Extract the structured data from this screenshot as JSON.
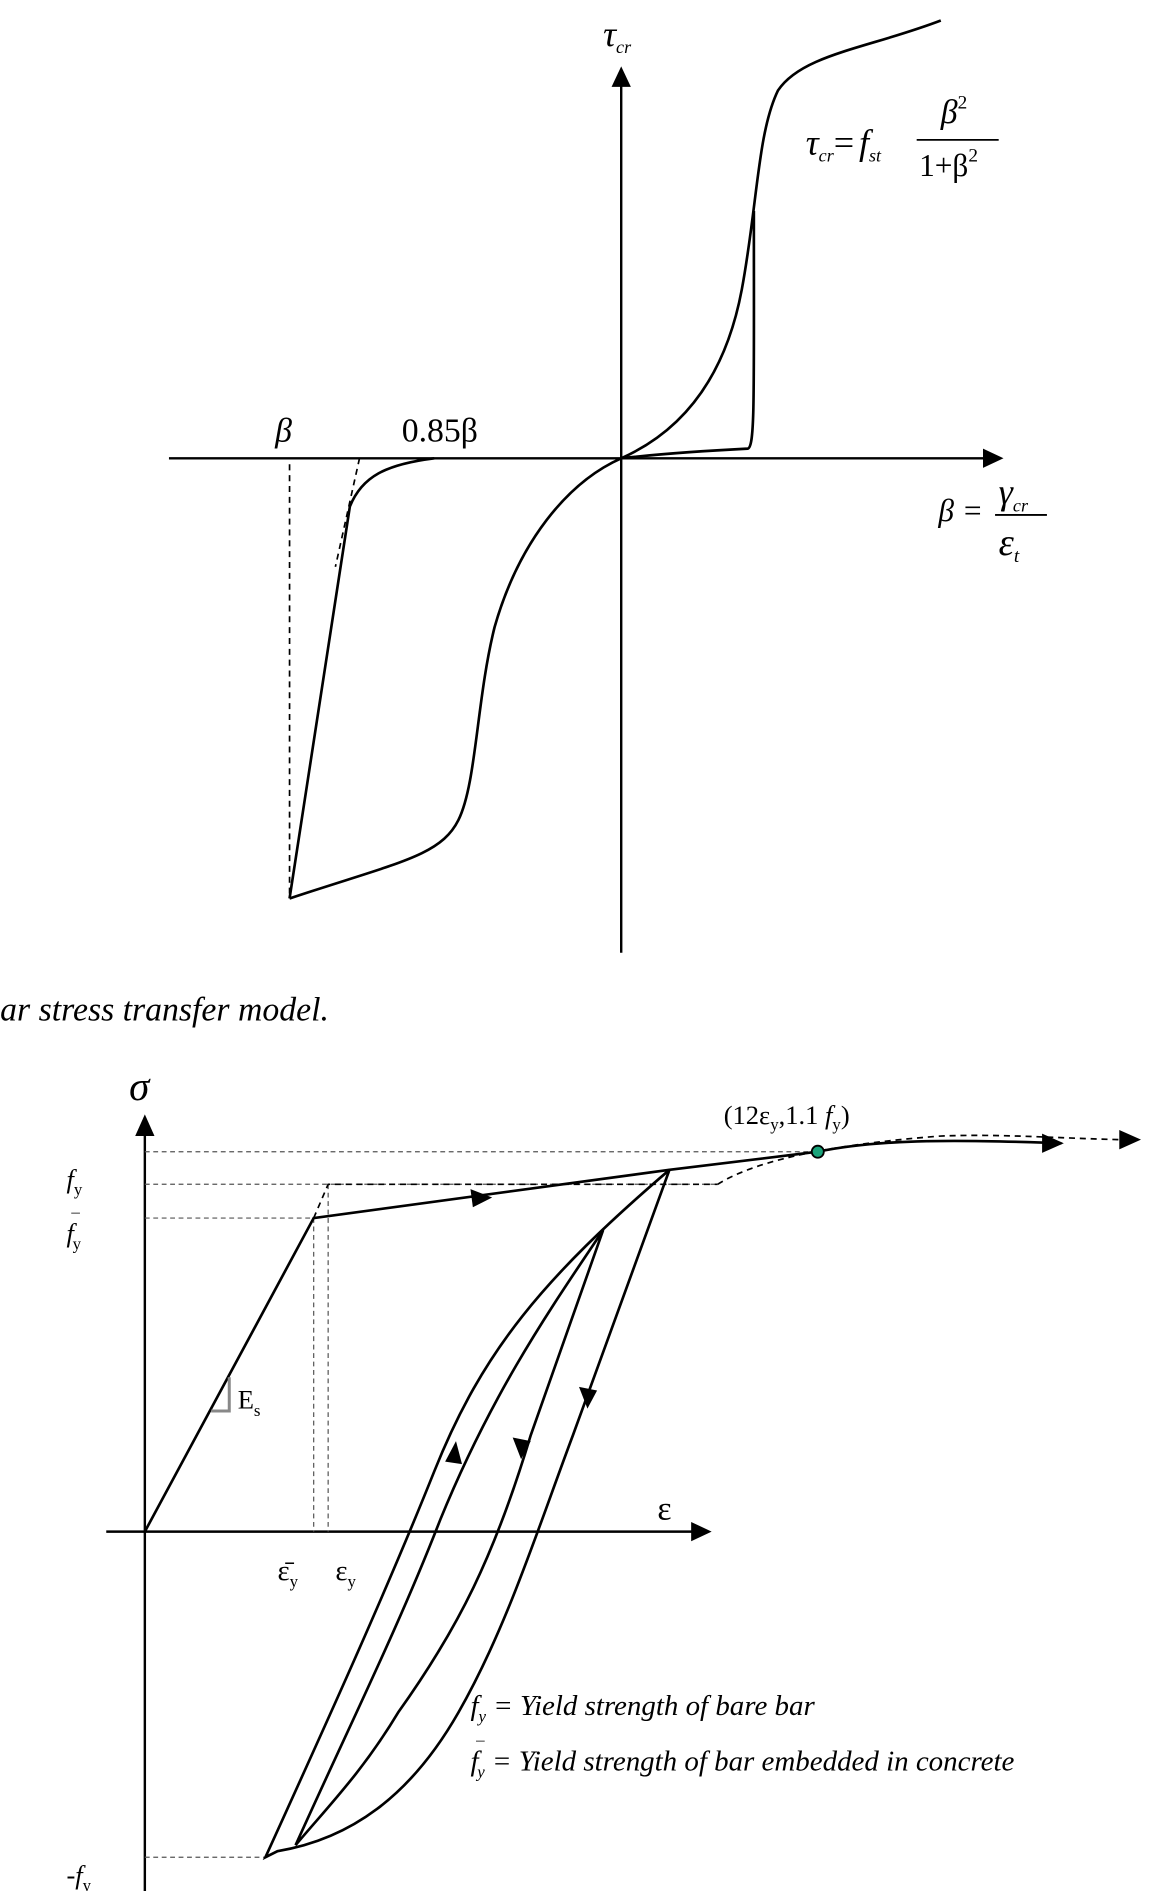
{
  "top_diagram": {
    "y_axis_label": {
      "symbol": "τ",
      "subscript": "cr"
    },
    "formula": {
      "lhs": "τ",
      "lhs_subscript": "cr",
      "equals": "=",
      "coefficient": "f",
      "coefficient_subscript": "st",
      "numerator": "β",
      "numerator_superscript": "2",
      "denominator": "1+β",
      "denominator_superscript": "2"
    },
    "beta_label": "β",
    "peak_label": "0.85β",
    "x_axis_label": {
      "lhs": "β =",
      "numerator": "γ",
      "numerator_subscript": "cr",
      "denominator": "ε",
      "denominator_subscript": "t"
    },
    "caption": "ar stress transfer model."
  },
  "bottom_diagram": {
    "y_axis_label": "σ",
    "x_axis_label": "ε",
    "point_label": {
      "open": "(12ε",
      "sub1": "y",
      "mid": ",1.1 ",
      "f": "f",
      "sub2": "y",
      "close": ")"
    },
    "fy_label": {
      "symbol": "f",
      "subscript": "y"
    },
    "fy_bar_label": {
      "symbol": "f",
      "bar": "¯",
      "subscript": "y"
    },
    "neg_fy_label": {
      "sign": "-",
      "symbol": "f",
      "subscript": "y"
    },
    "es_label": {
      "symbol": "E",
      "subscript": "s"
    },
    "eps_bar_label": {
      "symbol": "ε̄",
      "subscript": "y"
    },
    "eps_label": {
      "symbol": "ε",
      "subscript": "y"
    },
    "legend": [
      {
        "symbol": "f",
        "subscript": "y",
        "text": "= Yield strength of bare bar"
      },
      {
        "symbol": "f",
        "bar": "¯",
        "subscript": "y",
        "text": "= Yield strength of bar embedded in concrete"
      }
    ]
  }
}
